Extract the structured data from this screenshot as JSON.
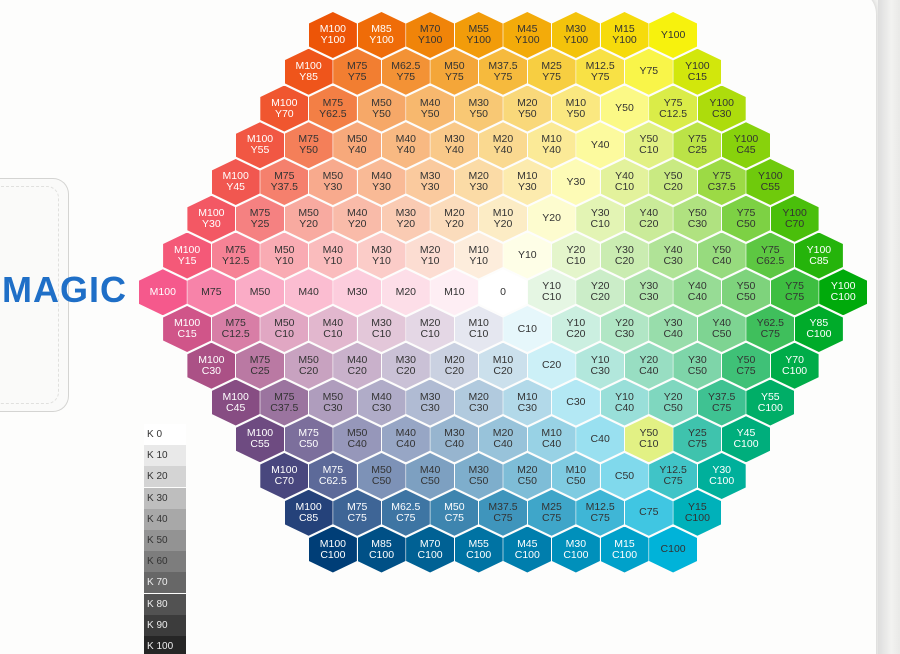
{
  "brand": {
    "text": "MAGIC",
    "color": "#1f6fc7"
  },
  "k_scale": [
    "K 0",
    "K 10",
    "K 20",
    "K 30",
    "K 40",
    "K 50",
    "K 60",
    "K 70",
    "K 80",
    "K 90",
    "K 100"
  ],
  "rows": [
    [
      "M100\nY100",
      "M85\nY100",
      "M70\nY100",
      "M55\nY100",
      "M45\nY100",
      "M30\nY100",
      "M15\nY100",
      "Y100"
    ],
    [
      "M100\nY85",
      "M75\nY75",
      "M62.5\nY75",
      "M50\nY75",
      "M37.5\nY75",
      "M25\nY75",
      "M12.5\nY75",
      "Y75",
      "Y100\nC15"
    ],
    [
      "M100\nY70",
      "M75\nY62.5",
      "M50\nY50",
      "M40\nY50",
      "M30\nY50",
      "M20\nY50",
      "M10\nY50",
      "Y50",
      "Y75\nC12.5",
      "Y100\nC30"
    ],
    [
      "M100\nY55",
      "M75\nY50",
      "M50\nY40",
      "M40\nY40",
      "M30\nY40",
      "M20\nY40",
      "M10\nY40",
      "Y40",
      "Y50\nC10",
      "Y75\nC25",
      "Y100\nC45"
    ],
    [
      "M100\nY45",
      "M75\nY37.5",
      "M50\nY30",
      "M40\nY30",
      "M30\nY30",
      "M20\nY30",
      "M10\nY30",
      "Y30",
      "Y40\nC10",
      "Y50\nC20",
      "Y75\nC37.5",
      "Y100\nC55"
    ],
    [
      "M100\nY30",
      "M75\nY25",
      "M50\nY20",
      "M40\nY20",
      "M30\nY20",
      "M20\nY20",
      "M10\nY20",
      "Y20",
      "Y30\nC10",
      "Y40\nC20",
      "Y50\nC30",
      "Y75\nC50",
      "Y100\nC70"
    ],
    [
      "M100\nY15",
      "M75\nY12.5",
      "M50\nY10",
      "M40\nY10",
      "M30\nY10",
      "M20\nY10",
      "M10\nY10",
      "Y10",
      "Y20\nC10",
      "Y30\nC20",
      "Y40\nC30",
      "Y50\nC40",
      "Y75\nC62.5",
      "Y100\nC85"
    ],
    [
      "M100",
      "M75",
      "M50",
      "M40",
      "M30",
      "M20",
      "M10",
      "0",
      "Y10\nC10",
      "Y20\nC20",
      "Y30\nC30",
      "Y40\nC40",
      "Y50\nC50",
      "Y75\nC75",
      "Y100\nC100"
    ],
    [
      "M100\nC15",
      "M75\nC12.5",
      "M50\nC10",
      "M40\nC10",
      "M30\nC10",
      "M20\nC10",
      "M10\nC10",
      "C10",
      "Y10\nC20",
      "Y20\nC30",
      "Y30\nC40",
      "Y40\nC50",
      "Y62.5\nC75",
      "Y85\nC100"
    ],
    [
      "M100\nC30",
      "M75\nC25",
      "M50\nC20",
      "M40\nC20",
      "M30\nC20",
      "M20\nC20",
      "M10\nC20",
      "C20",
      "Y10\nC30",
      "Y20\nC40",
      "Y30\nC50",
      "Y50\nC75",
      "Y70\nC100"
    ],
    [
      "M100\nC45",
      "M75\nC37.5",
      "M50\nC30",
      "M40\nC30",
      "M30\nC30",
      "M20\nC30",
      "M10\nC30",
      "C30",
      "Y10\nC40",
      "Y20\nC50",
      "Y37.5\nC75",
      "Y55\nC100"
    ],
    [
      "M100\nC55",
      "M75\nC50",
      "M50\nC40",
      "M40\nC40",
      "M30\nC40",
      "M20\nC40",
      "M10\nC40",
      "C40",
      "Y50\nC10",
      "Y25\nC75",
      "Y45\nC100"
    ],
    [
      "M100\nC70",
      "M75\nC62.5",
      "M50\nC50",
      "M40\nC50",
      "M30\nC50",
      "M20\nC50",
      "M10\nC50",
      "C50",
      "Y12.5\nC75",
      "Y30\nC100"
    ],
    [
      "M100\nC85",
      "M75\nC75",
      "M62.5\nC75",
      "M50\nC75",
      "M37.5\nC75",
      "M25\nC75",
      "M12.5\nC75",
      "C75",
      "Y15\nC100"
    ],
    [
      "M100\nC100",
      "M85\nC100",
      "M70\nC100",
      "M55\nC100",
      "M45\nC100",
      "M30\nC100",
      "M15\nC100",
      "C100"
    ]
  ]
}
